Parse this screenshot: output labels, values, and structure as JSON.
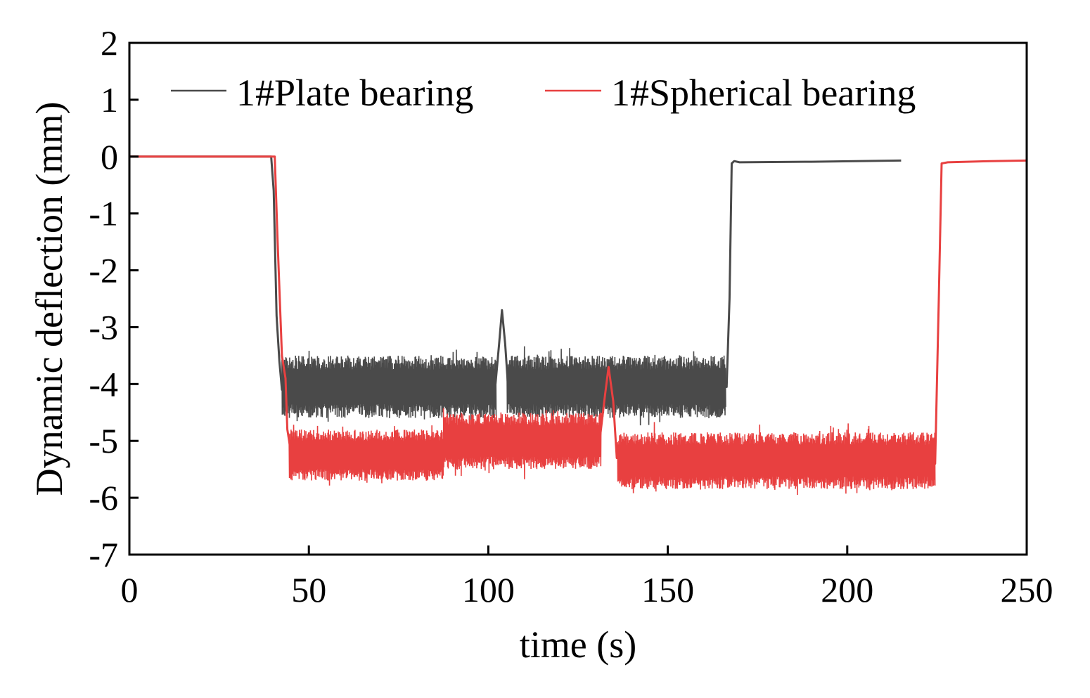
{
  "chart_data": {
    "type": "line",
    "title": "",
    "xlabel": "time (s)",
    "ylabel": "Dynamic deflection (mm)",
    "xlim": [
      0,
      250
    ],
    "ylim": [
      -7,
      2
    ],
    "xticks": [
      0,
      50,
      100,
      150,
      200,
      250
    ],
    "yticks": [
      2,
      1,
      0,
      -1,
      -2,
      -3,
      -4,
      -5,
      -6,
      -7
    ],
    "grid": false,
    "legend_position": "top",
    "series": [
      {
        "name": "1#Plate bearing",
        "color": "#4a4a4a",
        "noise": true,
        "points": [
          [
            0,
            0
          ],
          [
            39.5,
            0
          ],
          [
            40.2,
            -0.6
          ],
          [
            41,
            -2.8
          ],
          [
            41.8,
            -3.6
          ],
          [
            42.5,
            -4.1
          ],
          [
            44,
            -4.05
          ],
          [
            60,
            -4.05
          ],
          [
            75,
            -4.08
          ],
          [
            86,
            -4.05
          ],
          [
            90,
            -4.1
          ],
          [
            100,
            -4.05
          ],
          [
            102,
            -4.0
          ],
          [
            103,
            -3.3
          ],
          [
            103.8,
            -2.7
          ],
          [
            104.7,
            -3.3
          ],
          [
            105.5,
            -4.05
          ],
          [
            120,
            -4.05
          ],
          [
            140,
            -4.05
          ],
          [
            160,
            -4.05
          ],
          [
            166.4,
            -4.05
          ],
          [
            167.2,
            -2.5
          ],
          [
            167.8,
            -0.12
          ],
          [
            168.5,
            -0.08
          ],
          [
            170,
            -0.1
          ],
          [
            190,
            -0.09
          ],
          [
            215,
            -0.07
          ]
        ],
        "noise_segments": [
          {
            "t0": 42.5,
            "t1": 102.2,
            "center": -4.05,
            "amp": 0.55
          },
          {
            "t0": 105.2,
            "t1": 166.2,
            "center": -4.05,
            "amp": 0.55
          }
        ]
      },
      {
        "name": "1#Spherical bearing",
        "color": "#e84040",
        "noise": true,
        "points": [
          [
            0,
            0
          ],
          [
            40.5,
            0
          ],
          [
            41.3,
            -1.5
          ],
          [
            42.5,
            -3.5
          ],
          [
            43.5,
            -3.9
          ],
          [
            44,
            -4.8
          ],
          [
            45,
            -5.2
          ],
          [
            60,
            -5.25
          ],
          [
            75,
            -5.3
          ],
          [
            87,
            -5.25
          ],
          [
            88,
            -5.0
          ],
          [
            100,
            -5.0
          ],
          [
            120,
            -5.0
          ],
          [
            131,
            -5.0
          ],
          [
            132.5,
            -4.2
          ],
          [
            133.5,
            -3.7
          ],
          [
            134.8,
            -4.3
          ],
          [
            135.8,
            -5.3
          ],
          [
            150,
            -5.3
          ],
          [
            175,
            -5.35
          ],
          [
            200,
            -5.4
          ],
          [
            224.5,
            -5.4
          ],
          [
            225.5,
            -2.5
          ],
          [
            226.3,
            -0.12
          ],
          [
            228,
            -0.1
          ],
          [
            240,
            -0.08
          ],
          [
            250,
            -0.07
          ]
        ],
        "noise_segments": [
          {
            "t0": 44.5,
            "t1": 87.5,
            "center": -5.25,
            "amp": 0.45
          },
          {
            "t0": 87.5,
            "t1": 131.5,
            "center": -5.0,
            "amp": 0.5
          },
          {
            "t0": 136,
            "t1": 224.5,
            "center": -5.35,
            "amp": 0.5
          }
        ]
      }
    ]
  }
}
